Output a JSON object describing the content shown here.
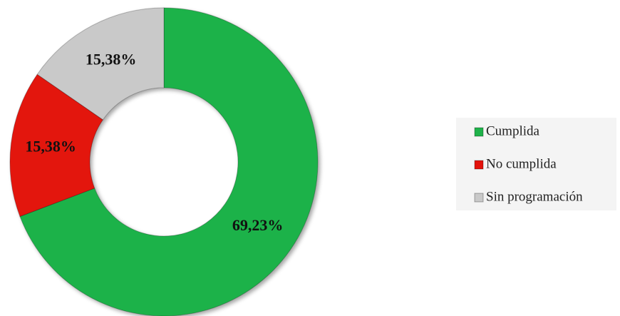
{
  "chart_data": {
    "type": "donut",
    "categories": [
      "Cumplida",
      "No cumplida",
      "Sin programación"
    ],
    "values": [
      69.23,
      15.38,
      15.38
    ],
    "value_labels": [
      "69,23%",
      "15,38%",
      "15,38%"
    ],
    "colors": [
      "#1fb24a",
      "#e3120b",
      "#c9c9c9"
    ],
    "legend": "right"
  }
}
